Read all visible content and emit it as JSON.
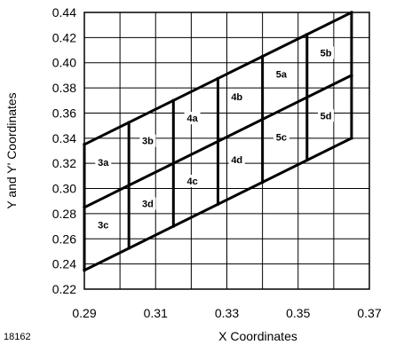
{
  "chart_data": {
    "type": "diagram",
    "title": "",
    "xlabel": "X Coordinates",
    "ylabel": "Y and Y' Coordinates",
    "figure_number": "18162",
    "xlim": [
      0.29,
      0.37
    ],
    "ylim": [
      0.22,
      0.44
    ],
    "xticks": [
      "0.29",
      "0.31",
      "0.33",
      "0.35",
      "0.37"
    ],
    "yticks": [
      "0.22",
      "0.24",
      "0.26",
      "0.28",
      "0.30",
      "0.32",
      "0.34",
      "0.36",
      "0.38",
      "0.40",
      "0.42",
      "0.44"
    ],
    "grid": true,
    "grid_x": [
      0.29,
      0.3,
      0.31,
      0.32,
      0.33,
      0.34,
      0.35,
      0.36,
      0.37
    ],
    "grid_y": [
      0.22,
      0.24,
      0.26,
      0.28,
      0.3,
      0.32,
      0.34,
      0.36,
      0.38,
      0.4,
      0.42,
      0.44
    ],
    "bin_boundaries": [
      {
        "name": "top",
        "points": [
          [
            0.29,
            0.335
          ],
          [
            0.365,
            0.44
          ]
        ]
      },
      {
        "name": "middle",
        "points": [
          [
            0.29,
            0.285
          ],
          [
            0.365,
            0.39
          ]
        ]
      },
      {
        "name": "bottom",
        "points": [
          [
            0.29,
            0.235
          ],
          [
            0.365,
            0.34
          ]
        ]
      },
      {
        "name": "v1",
        "points": [
          [
            0.29,
            0.235
          ],
          [
            0.29,
            0.335
          ]
        ]
      },
      {
        "name": "v2",
        "points": [
          [
            0.3025,
            0.2525
          ],
          [
            0.3025,
            0.3525
          ]
        ]
      },
      {
        "name": "v3",
        "points": [
          [
            0.315,
            0.27
          ],
          [
            0.315,
            0.37
          ]
        ]
      },
      {
        "name": "v4",
        "points": [
          [
            0.3275,
            0.2875
          ],
          [
            0.3275,
            0.3875
          ]
        ]
      },
      {
        "name": "v5",
        "points": [
          [
            0.34,
            0.305
          ],
          [
            0.34,
            0.405
          ]
        ]
      },
      {
        "name": "v6",
        "points": [
          [
            0.3525,
            0.3225
          ],
          [
            0.3525,
            0.4225
          ]
        ]
      },
      {
        "name": "v7",
        "points": [
          [
            0.365,
            0.34
          ],
          [
            0.365,
            0.44
          ]
        ]
      }
    ],
    "regions": [
      {
        "label": "3a",
        "x": 0.2953,
        "y": 0.321
      },
      {
        "label": "3b",
        "x": 0.3078,
        "y": 0.338
      },
      {
        "label": "3c",
        "x": 0.2953,
        "y": 0.271
      },
      {
        "label": "3d",
        "x": 0.3078,
        "y": 0.288
      },
      {
        "label": "4a",
        "x": 0.3203,
        "y": 0.356
      },
      {
        "label": "4b",
        "x": 0.3328,
        "y": 0.373
      },
      {
        "label": "4c",
        "x": 0.3203,
        "y": 0.306
      },
      {
        "label": "4d",
        "x": 0.3328,
        "y": 0.323
      },
      {
        "label": "5a",
        "x": 0.3453,
        "y": 0.391
      },
      {
        "label": "5b",
        "x": 0.3578,
        "y": 0.408
      },
      {
        "label": "5c",
        "x": 0.3453,
        "y": 0.341
      },
      {
        "label": "5d",
        "x": 0.3578,
        "y": 0.358
      }
    ]
  }
}
